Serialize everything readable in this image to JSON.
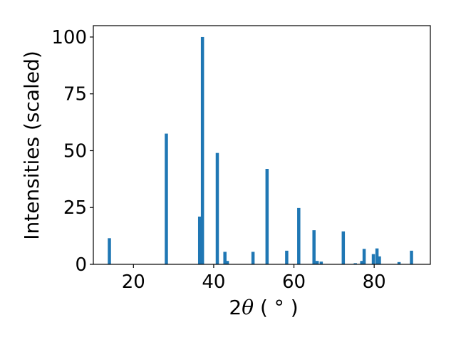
{
  "chart_data": {
    "type": "bar",
    "xlabel": {
      "prefix": "2",
      "symbol": "θ",
      "suffix": " ( ° )"
    },
    "ylabel": "Intensities (scaled)",
    "xlim": [
      10,
      94
    ],
    "ylim": [
      0,
      105
    ],
    "xticks": [
      20,
      40,
      60,
      80
    ],
    "yticks": [
      0,
      25,
      50,
      75,
      100
    ],
    "grid": false,
    "color": "#1f77b4",
    "bar_width": 0.8,
    "x": [
      14.0,
      28.2,
      36.5,
      37.2,
      40.9,
      42.8,
      43.4,
      49.8,
      53.3,
      58.2,
      61.2,
      65.0,
      65.8,
      66.8,
      72.3,
      75.3,
      76.9,
      77.5,
      79.8,
      80.7,
      81.3,
      86.2,
      89.3
    ],
    "values": [
      11.5,
      57.5,
      21.0,
      100.0,
      49.0,
      5.5,
      1.5,
      5.5,
      42.0,
      6.0,
      24.8,
      15.0,
      1.5,
      1.2,
      14.5,
      0.5,
      1.5,
      6.8,
      4.5,
      7.0,
      3.5,
      1.0,
      6.0
    ]
  }
}
